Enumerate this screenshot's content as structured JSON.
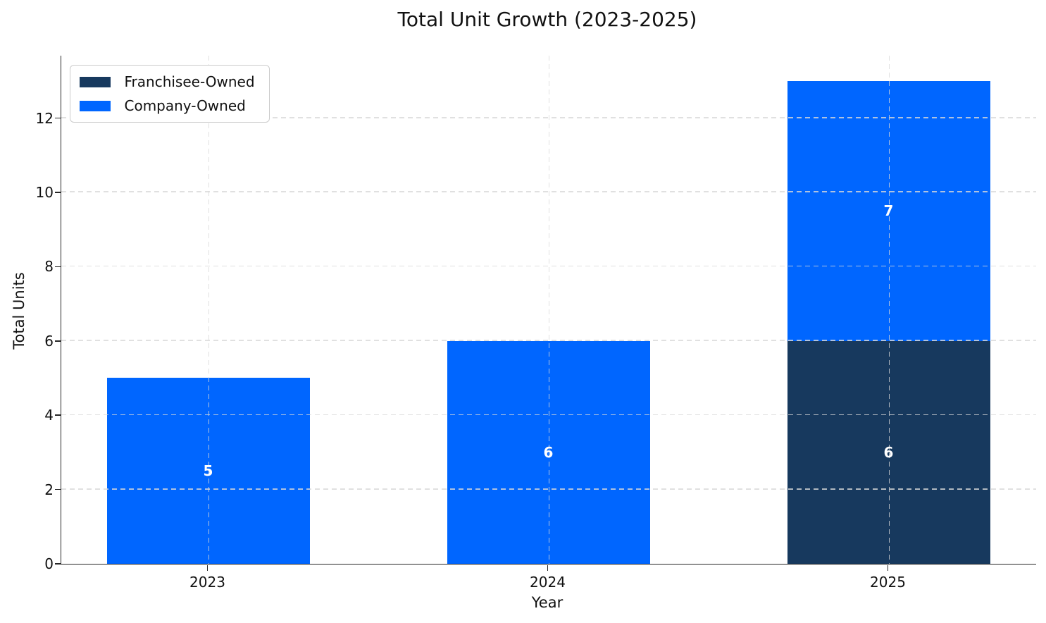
{
  "chart_data": {
    "type": "bar",
    "stacked": true,
    "title": "Total Unit Growth (2023-2025)",
    "xlabel": "Year",
    "ylabel": "Total Units",
    "categories": [
      "2023",
      "2024",
      "2025"
    ],
    "series": [
      {
        "name": "Franchisee-Owned",
        "color": "#17395E",
        "values": [
          0,
          0,
          6
        ]
      },
      {
        "name": "Company-Owned",
        "color": "#0066FF",
        "values": [
          5,
          6,
          7
        ]
      }
    ],
    "bar_labels": [
      [
        "5"
      ],
      [
        "6"
      ],
      [
        "6",
        "7"
      ]
    ],
    "yticks": [
      "0",
      "2",
      "4",
      "6",
      "8",
      "10",
      "12"
    ],
    "ylim": [
      0,
      13.68
    ],
    "grid": {
      "style": "dashed",
      "color": "#D9D9D9",
      "above_bars": true
    },
    "legend_position": "upper-left",
    "bar_label_color": "#FFFFFF",
    "spine_color": "#262626"
  }
}
